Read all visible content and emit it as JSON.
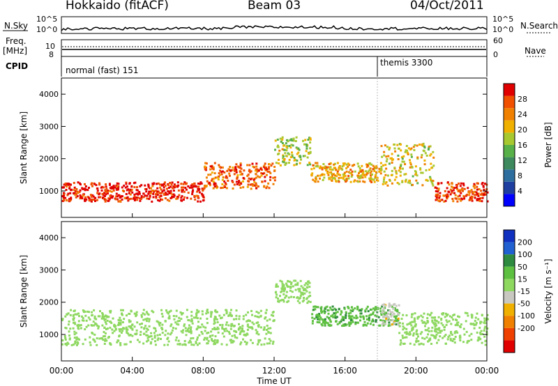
{
  "header": {
    "radar": "Hokkaido (fitACF)",
    "beam": "Beam 03",
    "date": "04/Oct/2011"
  },
  "strip": {
    "nsky_label": "N.Sky",
    "nsky_ticks": [
      "10^5",
      "10^0"
    ],
    "nsearch_label": "N.Search",
    "nsearch_ticks": [
      "10^5",
      "10^0"
    ],
    "freq_label_1": "Freq.",
    "freq_label_2": "[MHz]",
    "freq_ticks": [
      "10",
      "8"
    ],
    "nave_label": "Nave",
    "nave_ticks": [
      "60",
      "0"
    ],
    "cpid_label": "CPID",
    "cpid_modes": [
      "normal (fast) 151",
      "themis 3300"
    ]
  },
  "colors": {
    "power": [
      "#0000ff",
      "#1f3fa0",
      "#2e6e9e",
      "#3e8a5e",
      "#58b048",
      "#a8c830",
      "#f0b000",
      "#f08000",
      "#f05000",
      "#e00000"
    ],
    "velocity": [
      "#1030c0",
      "#2060d0",
      "#2e8a3e",
      "#5ec040",
      "#8ed860",
      "#c8c8c0",
      "#f0b000",
      "#f08000",
      "#f04000",
      "#e00000"
    ]
  },
  "chart_data": [
    {
      "type": "heatmap",
      "panel": "power",
      "ylabel": "Slant Range [km]",
      "ylim": [
        180,
        4500
      ],
      "y_ticks": [
        1000,
        2000,
        3000,
        4000
      ],
      "x_ticks": [
        "00:00",
        "04:00",
        "08:00",
        "12:00",
        "16:00",
        "20:00",
        "00:00"
      ],
      "colorbar": {
        "label": "Power [dB]",
        "ticks": [
          4,
          8,
          12,
          16,
          20,
          24,
          28
        ],
        "range": [
          0,
          32
        ]
      },
      "echo_bands": [
        {
          "start_ut": "00:00",
          "end_ut": "08:00",
          "range_km": [
            700,
            1300
          ],
          "power_db": 30
        },
        {
          "start_ut": "08:00",
          "end_ut": "12:00",
          "range_km": [
            1100,
            1900
          ],
          "power_db": 26
        },
        {
          "start_ut": "12:00",
          "end_ut": "14:00",
          "range_km": [
            1800,
            2700
          ],
          "power_db": 18
        },
        {
          "start_ut": "14:00",
          "end_ut": "18:00",
          "range_km": [
            1300,
            1900
          ],
          "power_db": 22
        },
        {
          "start_ut": "18:00",
          "end_ut": "21:00",
          "range_km": [
            1200,
            2500
          ],
          "power_db": 20
        },
        {
          "start_ut": "21:00",
          "end_ut": "24:00",
          "range_km": [
            700,
            1300
          ],
          "power_db": 28
        }
      ]
    },
    {
      "type": "heatmap",
      "panel": "velocity",
      "ylabel": "Slant Range [km]",
      "xlabel": "Time UT",
      "ylim": [
        180,
        4500
      ],
      "y_ticks": [
        1000,
        2000,
        3000,
        4000
      ],
      "x_ticks": [
        "00:00",
        "04:00",
        "08:00",
        "12:00",
        "16:00",
        "20:00",
        "00:00"
      ],
      "colorbar": {
        "label": "Velocity [m s⁻¹]",
        "ticks": [
          200,
          100,
          50,
          15,
          -15,
          -50,
          -100,
          -200
        ]
      },
      "echo_bands": [
        {
          "start_ut": "00:00",
          "end_ut": "12:00",
          "range_km": [
            700,
            1800
          ],
          "velocity": 0
        },
        {
          "start_ut": "12:00",
          "end_ut": "14:00",
          "range_km": [
            2000,
            2700
          ],
          "velocity": 0
        },
        {
          "start_ut": "14:00",
          "end_ut": "19:00",
          "range_km": [
            1300,
            1900
          ],
          "velocity": 40
        },
        {
          "start_ut": "18:00",
          "end_ut": "19:00",
          "range_km": [
            1300,
            2100
          ],
          "velocity": -40
        },
        {
          "start_ut": "19:00",
          "end_ut": "24:00",
          "range_km": [
            700,
            1700
          ],
          "velocity": 0
        }
      ]
    }
  ]
}
